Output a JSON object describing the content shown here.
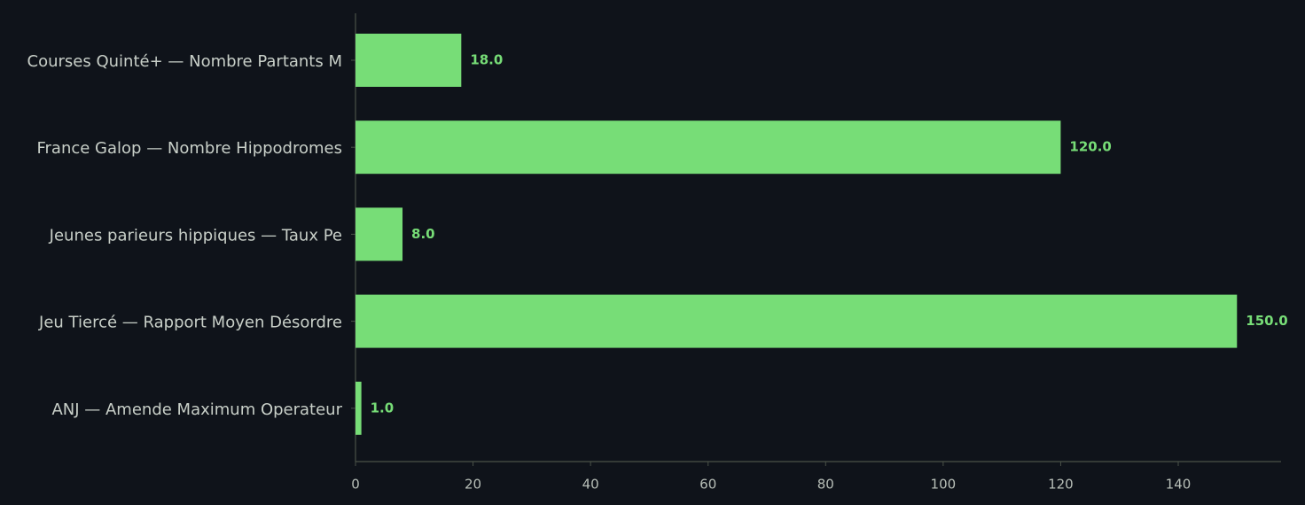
{
  "chart_data": {
    "type": "barh",
    "categories": [
      "Courses Quinté+ — Nombre Partants M",
      "France Galop — Nombre Hippodromes",
      "Jeunes parieurs hippiques — Taux Pe",
      "Jeu Tiercé — Rapport Moyen Désordre",
      "ANJ — Amende Maximum Operateur"
    ],
    "values": [
      18,
      120,
      8,
      150,
      1
    ],
    "value_labels": [
      "18.0",
      "120.0",
      "8.0",
      "150.0",
      "1.0"
    ],
    "color": "#77dd77",
    "xlim": [
      0,
      157.5
    ],
    "xticks": [
      0,
      20,
      40,
      60,
      80,
      100,
      120,
      140
    ],
    "grid": false
  }
}
